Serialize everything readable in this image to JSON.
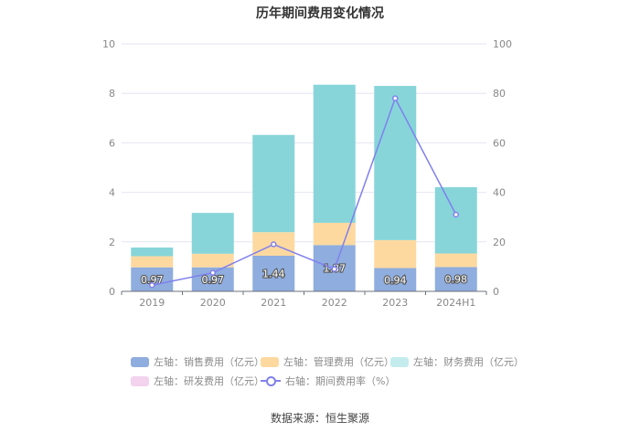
{
  "chart_data": {
    "type": "bar",
    "stacked": true,
    "title": "历年期间费用变化情况",
    "categories": [
      "2019",
      "2020",
      "2021",
      "2022",
      "2023",
      "2024H1"
    ],
    "left_axis": {
      "ylim": [
        0,
        10
      ],
      "ticks": [
        "0",
        "2",
        "4",
        "6",
        "8",
        "10"
      ]
    },
    "right_axis": {
      "ylim": [
        0,
        100
      ],
      "ticks": [
        "0",
        "20",
        "40",
        "60",
        "80",
        "100"
      ]
    },
    "series": [
      {
        "name": "左轴：销售费用（亿元）",
        "axis": "left",
        "kind": "bar",
        "color": "#8fadde",
        "values": [
          0.97,
          0.97,
          1.44,
          1.87,
          0.94,
          0.98
        ],
        "labels": [
          "0.97",
          "0.97",
          "1.44",
          "1.87",
          "0.94",
          "0.98"
        ]
      },
      {
        "name": "左轴：管理费用（亿元）",
        "axis": "left",
        "kind": "bar",
        "color": "#fdd9a0",
        "values": [
          0.45,
          0.55,
          0.95,
          0.9,
          1.13,
          0.55
        ]
      },
      {
        "name": "左轴：财务费用（亿元）",
        "axis": "left",
        "kind": "bar",
        "color": "#87d5d9",
        "values": [
          0.35,
          1.65,
          3.93,
          5.58,
          6.23,
          2.68
        ]
      },
      {
        "name": "左轴：研发费用（亿元）",
        "axis": "left",
        "kind": "bar",
        "color": "#f3d3ee",
        "values": [
          0,
          0,
          0,
          0,
          0,
          0
        ]
      },
      {
        "name": "右轴：期间费用率（%）",
        "axis": "right",
        "kind": "line",
        "color": "#8080ee",
        "values": [
          2.5,
          7.5,
          19.0,
          9.0,
          78.0,
          31.0
        ]
      }
    ]
  },
  "source": "数据来源：恒生聚源"
}
